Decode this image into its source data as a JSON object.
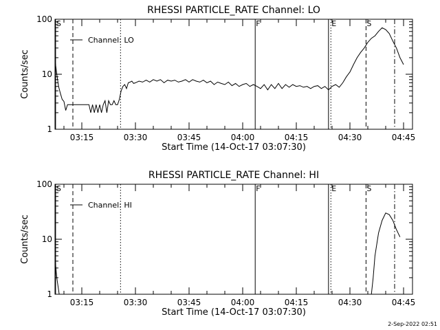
{
  "footer": {
    "date_stamp": "2-Sep-2022 02:51"
  },
  "chart_data": [
    {
      "type": "line",
      "title": "RHESSI PARTICLE_RATE Channel: LO",
      "xlabel": "Start Time (14-Oct-17 03:07:30)",
      "ylabel": "Counts/sec",
      "y_scale": "log",
      "ylim": [
        1,
        100
      ],
      "xlim": [
        "03:07:30",
        "04:47:30"
      ],
      "x_ticks": [
        "03:15",
        "03:30",
        "03:45",
        "04:00",
        "04:15",
        "04:30",
        "04:45"
      ],
      "y_ticks": [
        "1",
        "10",
        "100"
      ],
      "legend": {
        "label": "Channel: LO",
        "position": "top-left"
      },
      "markers": [
        {
          "label": "S",
          "time": "03:07:40",
          "style": "solid"
        },
        {
          "label": "",
          "time": "03:12:30",
          "style": "dashed"
        },
        {
          "label": "",
          "time": "03:25:50",
          "style": "dotted"
        },
        {
          "label": "F",
          "time": "04:03:30",
          "style": "solid"
        },
        {
          "label": "",
          "time": "04:24:00",
          "style": "solid"
        },
        {
          "label": "E",
          "time": "04:24:40",
          "style": "dotted"
        },
        {
          "label": "S",
          "time": "04:34:30",
          "style": "dashed"
        },
        {
          "label": "",
          "time": "04:42:30",
          "style": "dashdot"
        }
      ],
      "series": [
        {
          "name": "Channel: LO",
          "points": [
            [
              "03:07:30",
              18
            ],
            [
              "03:08:00",
              10
            ],
            [
              "03:08:30",
              6
            ],
            [
              "03:09:00",
              4.5
            ],
            [
              "03:09:30",
              3.5
            ],
            [
              "03:10:00",
              3.2
            ],
            [
              "03:10:30",
              2.2
            ],
            [
              "03:11:00",
              2.8
            ],
            [
              "03:11:30",
              2.8
            ],
            [
              "03:12:00",
              2.8
            ],
            [
              "03:13:00",
              2.8
            ],
            [
              "03:14:00",
              2.8
            ],
            [
              "03:15:00",
              2.8
            ],
            [
              "03:16:00",
              2.8
            ],
            [
              "03:17:00",
              2.8
            ],
            [
              "03:17:30",
              2
            ],
            [
              "03:18:00",
              2.8
            ],
            [
              "03:18:30",
              2
            ],
            [
              "03:19:00",
              2.8
            ],
            [
              "03:19:30",
              2
            ],
            [
              "03:20:00",
              2.8
            ],
            [
              "03:20:30",
              2
            ],
            [
              "03:21:00",
              2.8
            ],
            [
              "03:21:30",
              3.3
            ],
            [
              "03:22:00",
              2
            ],
            [
              "03:22:30",
              3.3
            ],
            [
              "03:23:00",
              2.8
            ],
            [
              "03:23:30",
              2.8
            ],
            [
              "03:24:00",
              3.3
            ],
            [
              "03:24:30",
              2.8
            ],
            [
              "03:25:00",
              2.8
            ],
            [
              "03:25:30",
              3.5
            ],
            [
              "03:26:00",
              5
            ],
            [
              "03:26:30",
              6
            ],
            [
              "03:27:00",
              6.5
            ],
            [
              "03:27:30",
              5.5
            ],
            [
              "03:28:00",
              7
            ],
            [
              "03:28:30",
              7.2
            ],
            [
              "03:29:00",
              7.5
            ],
            [
              "03:29:30",
              6.8
            ],
            [
              "03:30:00",
              7
            ],
            [
              "03:31:00",
              7.5
            ],
            [
              "03:32:00",
              7.2
            ],
            [
              "03:33:00",
              7.8
            ],
            [
              "03:34:00",
              7.2
            ],
            [
              "03:35:00",
              8
            ],
            [
              "03:36:00",
              7.5
            ],
            [
              "03:37:00",
              8
            ],
            [
              "03:38:00",
              7
            ],
            [
              "03:39:00",
              7.8
            ],
            [
              "03:40:00",
              7.5
            ],
            [
              "03:41:00",
              7.8
            ],
            [
              "03:42:00",
              7.2
            ],
            [
              "03:43:00",
              7.5
            ],
            [
              "03:44:00",
              8
            ],
            [
              "03:45:00",
              7.2
            ],
            [
              "03:46:00",
              8
            ],
            [
              "03:47:00",
              7.5
            ],
            [
              "03:48:00",
              7.2
            ],
            [
              "03:49:00",
              7.8
            ],
            [
              "03:50:00",
              7
            ],
            [
              "03:51:00",
              7.5
            ],
            [
              "03:52:00",
              6.5
            ],
            [
              "03:53:00",
              7.2
            ],
            [
              "03:54:00",
              6.8
            ],
            [
              "03:55:00",
              6.5
            ],
            [
              "03:56:00",
              7.2
            ],
            [
              "03:57:00",
              6.2
            ],
            [
              "03:58:00",
              6.8
            ],
            [
              "03:59:00",
              6
            ],
            [
              "04:00:00",
              6.5
            ],
            [
              "04:01:00",
              6.8
            ],
            [
              "04:02:00",
              6
            ],
            [
              "04:03:00",
              6.5
            ],
            [
              "04:04:00",
              6
            ],
            [
              "04:05:00",
              5.5
            ],
            [
              "04:06:00",
              6.5
            ],
            [
              "04:07:00",
              5.2
            ],
            [
              "04:08:00",
              6.5
            ],
            [
              "04:09:00",
              5.5
            ],
            [
              "04:10:00",
              6.8
            ],
            [
              "04:11:00",
              5.5
            ],
            [
              "04:12:00",
              6.5
            ],
            [
              "04:13:00",
              5.8
            ],
            [
              "04:14:00",
              6.5
            ],
            [
              "04:15:00",
              6
            ],
            [
              "04:16:00",
              6.2
            ],
            [
              "04:17:00",
              5.8
            ],
            [
              "04:18:00",
              6
            ],
            [
              "04:19:00",
              5.5
            ],
            [
              "04:20:00",
              6
            ],
            [
              "04:21:00",
              6.2
            ],
            [
              "04:22:00",
              5.5
            ],
            [
              "04:23:00",
              6
            ],
            [
              "04:24:00",
              5.2
            ],
            [
              "04:25:00",
              6
            ],
            [
              "04:26:00",
              6.5
            ],
            [
              "04:27:00",
              5.8
            ],
            [
              "04:28:00",
              7
            ],
            [
              "04:29:00",
              9
            ],
            [
              "04:30:00",
              11
            ],
            [
              "04:31:00",
              15
            ],
            [
              "04:32:00",
              20
            ],
            [
              "04:33:00",
              25
            ],
            [
              "04:34:00",
              30
            ],
            [
              "04:35:00",
              38
            ],
            [
              "04:36:00",
              45
            ],
            [
              "04:37:00",
              50
            ],
            [
              "04:38:00",
              60
            ],
            [
              "04:39:00",
              70
            ],
            [
              "04:40:00",
              65
            ],
            [
              "04:41:00",
              55
            ],
            [
              "04:42:00",
              40
            ],
            [
              "04:43:00",
              30
            ],
            [
              "04:44:00",
              20
            ],
            [
              "04:45:00",
              15
            ]
          ]
        }
      ]
    },
    {
      "type": "line",
      "title": "RHESSI PARTICLE_RATE Channel: HI",
      "xlabel": "Start Time (14-Oct-17 03:07:30)",
      "ylabel": "Counts/sec",
      "y_scale": "log",
      "ylim": [
        1,
        100
      ],
      "xlim": [
        "03:07:30",
        "04:47:30"
      ],
      "x_ticks": [
        "03:15",
        "03:30",
        "03:45",
        "04:00",
        "04:15",
        "04:30",
        "04:45"
      ],
      "y_ticks": [
        "1",
        "10",
        "100"
      ],
      "legend": {
        "label": "Channel: HI",
        "position": "top-left"
      },
      "markers": [
        {
          "label": "S",
          "time": "03:07:40",
          "style": "solid"
        },
        {
          "label": "",
          "time": "03:12:30",
          "style": "dashed"
        },
        {
          "label": "",
          "time": "03:25:50",
          "style": "dotted"
        },
        {
          "label": "F",
          "time": "04:03:30",
          "style": "solid"
        },
        {
          "label": "",
          "time": "04:24:00",
          "style": "solid"
        },
        {
          "label": "E",
          "time": "04:24:40",
          "style": "dotted"
        },
        {
          "label": "S",
          "time": "04:34:30",
          "style": "dashed"
        },
        {
          "label": "",
          "time": "04:42:30",
          "style": "dashdot"
        }
      ],
      "series": [
        {
          "name": "Channel: HI",
          "points": [
            [
              "03:07:30",
              4.5
            ],
            [
              "03:08:00",
              2
            ],
            [
              "03:08:40",
              1
            ],
            [
              "04:36:00",
              1
            ],
            [
              "04:36:30",
              2
            ],
            [
              "04:37:00",
              5
            ],
            [
              "04:38:00",
              13
            ],
            [
              "04:39:00",
              22
            ],
            [
              "04:40:00",
              30
            ],
            [
              "04:41:00",
              28
            ],
            [
              "04:42:00",
              22
            ],
            [
              "04:43:00",
              15
            ],
            [
              "04:44:00",
              11
            ]
          ]
        }
      ]
    }
  ]
}
